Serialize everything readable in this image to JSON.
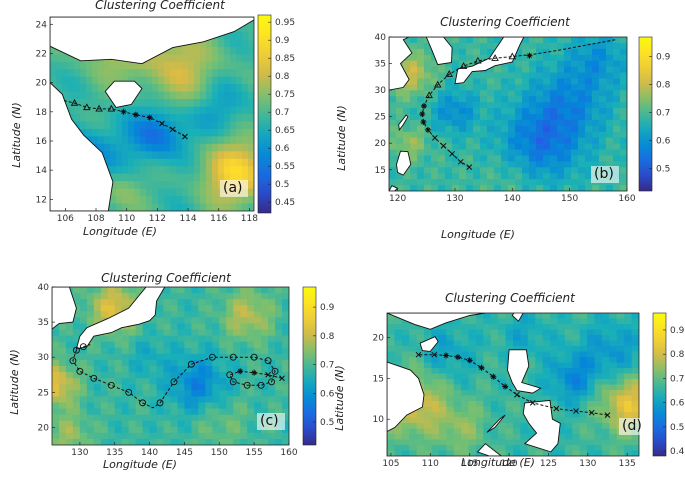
{
  "chart_data": [
    {
      "type": "heatmap",
      "title": "Clustering Coefficient",
      "panel_label": "(a)",
      "xlabel": "Longitude (E)",
      "ylabel": "Latitude (N)",
      "xticks": [
        "106",
        "108",
        "110",
        "112",
        "114",
        "116",
        "118"
      ],
      "yticks": [
        "12",
        "14",
        "16",
        "18",
        "20",
        "22",
        "24"
      ],
      "colorbar_ticks": [
        "0.45",
        "0.5",
        "0.55",
        "0.6",
        "0.65",
        "0.7",
        "0.75",
        "0.8",
        "0.85",
        "0.9",
        "0.95"
      ],
      "xlim": [
        105,
        118.3
      ],
      "ylim": [
        11.2,
        24.5
      ],
      "clim": [
        0.42,
        0.97
      ],
      "track": [
        [
          113.8,
          16.3
        ],
        [
          113.0,
          16.8
        ],
        [
          112.3,
          17.2
        ],
        [
          111.5,
          17.6
        ],
        [
          110.6,
          17.8
        ],
        [
          109.8,
          18.0
        ],
        [
          109.0,
          18.2
        ],
        [
          108.2,
          18.2
        ],
        [
          107.4,
          18.3
        ],
        [
          106.6,
          18.6
        ],
        [
          105.8,
          18.8
        ]
      ],
      "track_markers_x": [
        [
          113.8,
          16.3
        ],
        [
          113.0,
          16.8
        ],
        [
          112.3,
          17.2
        ]
      ],
      "track_markers_star": [
        [
          111.5,
          17.6
        ],
        [
          110.6,
          17.8
        ],
        [
          109.8,
          18.0
        ]
      ],
      "track_markers_tri": [
        [
          109.0,
          18.2
        ],
        [
          108.2,
          18.2
        ],
        [
          107.4,
          18.3
        ],
        [
          106.6,
          18.6
        ]
      ]
    },
    {
      "type": "heatmap",
      "title": "Clustering Coefficient",
      "panel_label": "(b)",
      "xlabel": "Longitude (E)",
      "ylabel": "Latitude (N)",
      "xticks": [
        "120",
        "130",
        "140",
        "150",
        "160"
      ],
      "yticks": [
        "15",
        "20",
        "25",
        "30",
        "35",
        "40"
      ],
      "colorbar_ticks": [
        "0.5",
        "0.6",
        "0.7",
        "0.8",
        "0.9"
      ],
      "xlim": [
        118.5,
        160
      ],
      "ylim": [
        11,
        40
      ],
      "clim": [
        0.42,
        0.97
      ],
      "track": [
        [
          132.5,
          15.5
        ],
        [
          131,
          16.5
        ],
        [
          129.5,
          18
        ],
        [
          128,
          19.5
        ],
        [
          126.5,
          21
        ],
        [
          125.3,
          22.5
        ],
        [
          124.5,
          24
        ],
        [
          124.3,
          25.5
        ],
        [
          124.6,
          27
        ],
        [
          125.5,
          29
        ],
        [
          127,
          31
        ],
        [
          129,
          33
        ],
        [
          131.5,
          34.5
        ],
        [
          134,
          35.5
        ],
        [
          137,
          36
        ],
        [
          140,
          36.3
        ],
        [
          144,
          36.8
        ],
        [
          148,
          37.5
        ],
        [
          153,
          38.5
        ],
        [
          158,
          39.5
        ]
      ],
      "track_markers_x": [
        [
          132.5,
          15.5
        ],
        [
          131,
          16.5
        ],
        [
          129.5,
          18
        ],
        [
          128,
          19.5
        ],
        [
          126.5,
          21
        ]
      ],
      "track_markers_star": [
        [
          125.3,
          22.5
        ],
        [
          124.5,
          24
        ],
        [
          124.3,
          25.5
        ],
        [
          124.6,
          27
        ],
        [
          143,
          36.5
        ]
      ],
      "track_markers_tri": [
        [
          125.5,
          29
        ],
        [
          127,
          31
        ],
        [
          129,
          33
        ],
        [
          131.5,
          34.5
        ],
        [
          134,
          35.5
        ],
        [
          137,
          36
        ],
        [
          140,
          36.3
        ]
      ]
    },
    {
      "type": "heatmap",
      "title": "Clustering Coefficient",
      "panel_label": "(c)",
      "xlabel": "Longitude (E)",
      "ylabel": "Latitude (N)",
      "xticks": [
        "130",
        "135",
        "140",
        "145",
        "150",
        "155",
        "160"
      ],
      "yticks": [
        "20",
        "25",
        "30",
        "35",
        "40"
      ],
      "colorbar_ticks": [
        "0.5",
        "0.6",
        "0.7",
        "0.8",
        "0.9"
      ],
      "xlim": [
        126,
        160
      ],
      "ylim": [
        17.5,
        40
      ],
      "clim": [
        0.42,
        0.97
      ],
      "track": [
        [
          159,
          27
        ],
        [
          157,
          27.5
        ],
        [
          155,
          27.8
        ],
        [
          153,
          28
        ],
        [
          151.5,
          27.5
        ],
        [
          152,
          26.5
        ],
        [
          154,
          26
        ],
        [
          156,
          26
        ],
        [
          157.5,
          26.5
        ],
        [
          158,
          28
        ],
        [
          157,
          29.5
        ],
        [
          155,
          30
        ],
        [
          152,
          30
        ],
        [
          149,
          30
        ],
        [
          146,
          29
        ],
        [
          143.5,
          26.5
        ],
        [
          141.5,
          23.5
        ],
        [
          140.5,
          22.8
        ],
        [
          139,
          23.5
        ],
        [
          137,
          25
        ],
        [
          134.5,
          26
        ],
        [
          132,
          27
        ],
        [
          130,
          28
        ],
        [
          129,
          29.5
        ],
        [
          129.5,
          31
        ],
        [
          130.5,
          31.5
        ],
        [
          131.5,
          31.8
        ]
      ],
      "track_markers_x": [
        [
          159,
          27
        ],
        [
          157,
          27.5
        ]
      ],
      "track_markers_star": [
        [
          155,
          27.8
        ],
        [
          153,
          28
        ]
      ],
      "track_markers_circle": [
        [
          151.5,
          27.5
        ],
        [
          152,
          26.5
        ],
        [
          154,
          26
        ],
        [
          156,
          26
        ],
        [
          157.5,
          26.5
        ],
        [
          158,
          28
        ],
        [
          157,
          29.5
        ],
        [
          155,
          30
        ],
        [
          152,
          30
        ],
        [
          149,
          30
        ],
        [
          146,
          29
        ],
        [
          143.5,
          26.5
        ],
        [
          141.5,
          23.5
        ],
        [
          139,
          23.5
        ],
        [
          137,
          25
        ],
        [
          134.5,
          26
        ],
        [
          132,
          27
        ],
        [
          130,
          28
        ],
        [
          129,
          29.5
        ],
        [
          129.5,
          31
        ],
        [
          130.5,
          31.5
        ]
      ]
    },
    {
      "type": "heatmap",
      "title": "Clustering Coefficient",
      "panel_label": "(d)",
      "xlabel": "Longitude (E)",
      "ylabel": "Latitude (N)",
      "xticks": [
        "105",
        "110",
        "115",
        "120",
        "125",
        "130",
        "135"
      ],
      "yticks": [
        "10",
        "15",
        "20"
      ],
      "colorbar_ticks": [
        "0.4",
        "0.5",
        "0.6",
        "0.7",
        "0.8",
        "0.9"
      ],
      "xlim": [
        104.5,
        136.5
      ],
      "ylim": [
        5.5,
        23
      ],
      "clim": [
        0.38,
        0.97
      ],
      "track": [
        [
          132.5,
          10.5
        ],
        [
          130.5,
          10.8
        ],
        [
          128.5,
          11
        ],
        [
          126,
          11.3
        ],
        [
          123,
          12
        ],
        [
          121,
          13
        ],
        [
          119.5,
          14
        ],
        [
          118,
          15.2
        ],
        [
          116.5,
          16.3
        ],
        [
          115,
          17.2
        ],
        [
          113.5,
          17.6
        ],
        [
          112,
          17.8
        ],
        [
          110.5,
          17.9
        ],
        [
          108.5,
          17.9
        ]
      ],
      "track_markers_x": [
        [
          132.5,
          10.5
        ],
        [
          130.5,
          10.8
        ],
        [
          128.5,
          11
        ],
        [
          126,
          11.3
        ],
        [
          123,
          12
        ],
        [
          121,
          13
        ],
        [
          110.5,
          17.9
        ],
        [
          108.5,
          17.9
        ]
      ],
      "track_markers_star": [
        [
          119.5,
          14
        ],
        [
          118,
          15.2
        ],
        [
          116.5,
          16.3
        ],
        [
          115,
          17.2
        ],
        [
          113.5,
          17.6
        ],
        [
          112,
          17.8
        ]
      ]
    }
  ]
}
